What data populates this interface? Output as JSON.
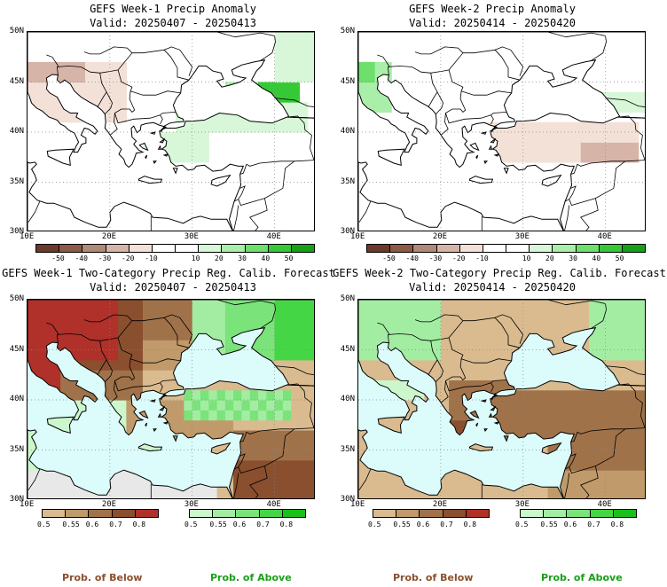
{
  "panels": [
    {
      "title": "GEFS Week-1 Precip Anomaly",
      "valid": "Valid: 20250407 - 20250413",
      "type": "anomaly"
    },
    {
      "title": "GEFS Week-2 Precip Anomaly",
      "valid": "Valid: 20250414 - 20250420",
      "type": "anomaly"
    },
    {
      "title": "GEFS Week-1 Two-Category Precip Reg. Calib. Forecast",
      "valid": "Valid: 20250407 - 20250413",
      "type": "prob"
    },
    {
      "title": "GEFS Week-2 Two-Category Precip Reg. Calib. Forecast",
      "valid": "Valid: 20250414 - 20250420",
      "type": "prob"
    }
  ],
  "lat_labels": [
    "50N",
    "45N",
    "40N",
    "35N",
    "30N"
  ],
  "lon_labels": [
    "10E",
    "20E",
    "30E",
    "40E"
  ],
  "anomaly_colorbar": {
    "colors": [
      "#6b3a2a",
      "#8c5a45",
      "#b08a78",
      "#d6b5a8",
      "#f3e1d8",
      "#ffffff",
      "#ffffff",
      "#d8f7d8",
      "#a9eea9",
      "#6ddf6d",
      "#35c935",
      "#16a016"
    ],
    "ticks": [
      "-50",
      "-40",
      "-30",
      "-20",
      "-10",
      "10",
      "20",
      "30",
      "40",
      "50"
    ]
  },
  "below_colorbar": {
    "colors": [
      "#d9bb8f",
      "#c09a6a",
      "#a0724a",
      "#8a4f2e",
      "#b0302a"
    ],
    "ticks": [
      "0.5",
      "0.55",
      "0.6",
      "0.7",
      "0.8"
    ],
    "label": "Prob. of Below"
  },
  "above_colorbar": {
    "colors": [
      "#ccf7cc",
      "#a3eda3",
      "#7ae37a",
      "#45d645",
      "#19c019"
    ],
    "ticks": [
      "0.5",
      "0.55",
      "0.6",
      "0.7",
      "0.8"
    ],
    "label": "Prob. of Above"
  },
  "colors": {
    "sea": "#dcfbfb",
    "nodata": "#e8e8e8"
  }
}
